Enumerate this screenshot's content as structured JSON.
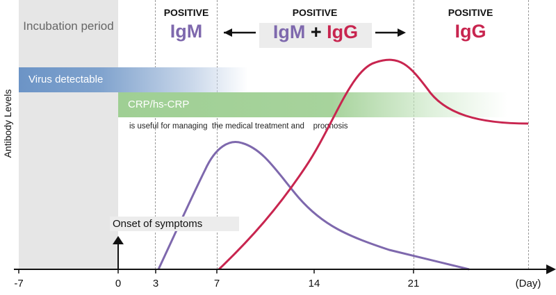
{
  "incubation_label": "Incubation period",
  "y_axis_label": "Antibody Levels",
  "x_unit": "(Day)",
  "x_ticks": [
    "-7",
    "0",
    "3",
    "7",
    "14",
    "21"
  ],
  "phases": {
    "left": {
      "status": "POSITIVE",
      "antibody": "IgM"
    },
    "middle": {
      "status": "POSITIVE",
      "antibody1": "IgM",
      "plus": "+",
      "antibody2": "IgG"
    },
    "right": {
      "status": "POSITIVE",
      "antibody": "IgG"
    }
  },
  "bars": {
    "virus": "Virus detectable",
    "crp": "CRP/hs-CRP",
    "crp_note": "is useful for managing  the medical treatment and    prognosis"
  },
  "onset_label": "Onset of symptoms",
  "colors": {
    "igm": "#7e68ad",
    "igg": "#c8254f",
    "virus": "#6c94c6",
    "crp": "#9fcf94",
    "incubation": "#e6e6e6"
  },
  "chart_data": {
    "type": "line",
    "xlabel": "(Day)",
    "ylabel": "Antibody Levels",
    "x_ticks": [
      -7,
      0,
      3,
      7,
      14,
      21
    ],
    "series": [
      {
        "name": "IgM",
        "points": [
          [
            3,
            0
          ],
          [
            6,
            0.5
          ],
          [
            9,
            1.0
          ],
          [
            14,
            0.65
          ],
          [
            18,
            0.27
          ],
          [
            26,
            0
          ]
        ]
      },
      {
        "name": "IgG",
        "points": [
          [
            7,
            0
          ],
          [
            14,
            0.65
          ],
          [
            17,
            1.45
          ],
          [
            20,
            1.65
          ],
          [
            23,
            1.45
          ],
          [
            28,
            1.15
          ]
        ]
      }
    ]
  }
}
